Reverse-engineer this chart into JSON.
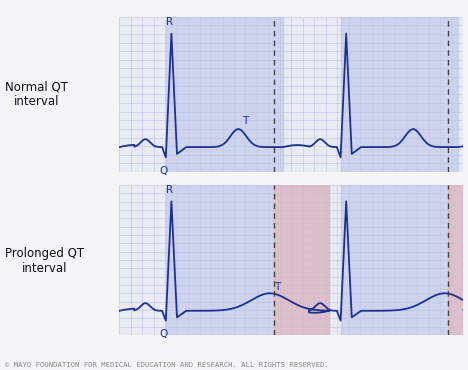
{
  "title_normal": "Normal QT\ninterval",
  "title_prolonged": "Prolonged QT\ninterval",
  "copyright": "© MAYO FOUNDATION FOR MEDICAL EDUCATION AND RESEARCH. ALL RIGHTS RESERVED.",
  "bg_color": "#eeeef6",
  "panel_bg": "#e8eaf4",
  "grid_color": "#c0c4e8",
  "ecg_color": "#1c3191",
  "blue_shade": "#bcc4e8",
  "red_shade": "#e8b0b0",
  "dashed_color": "#444444",
  "label_color": "#111111",
  "blue_shade_alpha": 0.6,
  "red_shade_alpha": 0.55,
  "copyright_color": "#888888",
  "figsize": [
    4.68,
    3.7
  ],
  "dpi": 100,
  "white_gap": "#f5f5f8"
}
